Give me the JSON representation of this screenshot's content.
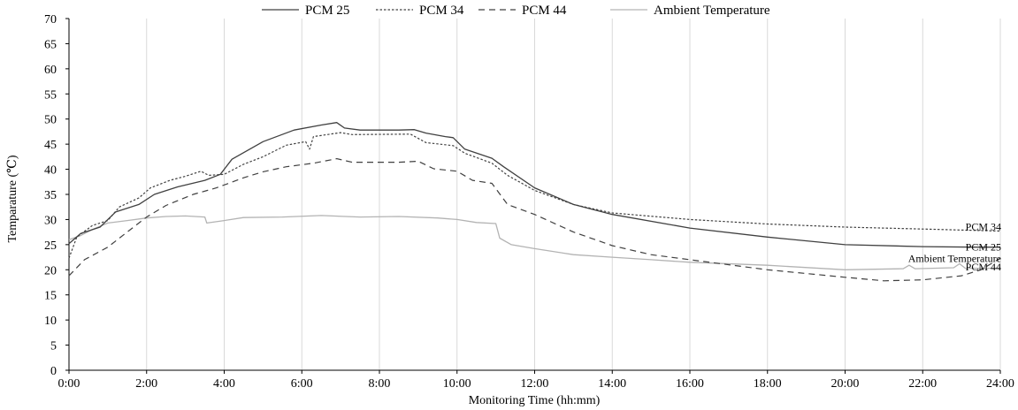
{
  "chart_data": {
    "type": "line",
    "title": "",
    "xlabel": "Monitoring Time (hh:mm)",
    "ylabel": "Temparature (℃)",
    "xlim": [
      0,
      24
    ],
    "ylim": [
      0,
      70
    ],
    "x_ticks": [
      0,
      2,
      4,
      6,
      8,
      10,
      12,
      14,
      16,
      18,
      20,
      22,
      24
    ],
    "x_tick_labels": [
      "0:00",
      "2:00",
      "4:00",
      "6:00",
      "8:00",
      "10:00",
      "12:00",
      "14:00",
      "16:00",
      "18:00",
      "20:00",
      "22:00",
      "24:00"
    ],
    "y_ticks": [
      0,
      5,
      10,
      15,
      20,
      25,
      30,
      35,
      40,
      45,
      50,
      55,
      60,
      65,
      70
    ],
    "y_tick_labels": [
      "0",
      "5",
      "10",
      "15",
      "20",
      "25",
      "30",
      "35",
      "40",
      "45",
      "50",
      "55",
      "60",
      "65",
      "70"
    ],
    "grid": "vertical",
    "legend_position": "top",
    "series": [
      {
        "name": "PCM 25",
        "end_label": "PCM 25",
        "color": "#404040",
        "dash": "solid",
        "points": [
          [
            0,
            25.2
          ],
          [
            0.3,
            27.2
          ],
          [
            0.8,
            28.5
          ],
          [
            1.2,
            31.5
          ],
          [
            1.8,
            33.0
          ],
          [
            2.2,
            35.0
          ],
          [
            2.8,
            36.5
          ],
          [
            3.5,
            37.8
          ],
          [
            3.9,
            39.0
          ],
          [
            4.2,
            42.0
          ],
          [
            5.0,
            45.5
          ],
          [
            5.8,
            47.8
          ],
          [
            6.5,
            48.8
          ],
          [
            6.9,
            49.3
          ],
          [
            7.1,
            48.2
          ],
          [
            7.5,
            47.8
          ],
          [
            8.5,
            47.8
          ],
          [
            8.9,
            47.9
          ],
          [
            9.2,
            47.2
          ],
          [
            9.7,
            46.5
          ],
          [
            9.9,
            46.3
          ],
          [
            10.2,
            44.0
          ],
          [
            10.9,
            42.2
          ],
          [
            11.2,
            40.5
          ],
          [
            12.0,
            36.3
          ],
          [
            13.0,
            33.0
          ],
          [
            14.0,
            31.0
          ],
          [
            16.0,
            28.3
          ],
          [
            18.0,
            26.5
          ],
          [
            20.0,
            25.0
          ],
          [
            22.0,
            24.6
          ],
          [
            23.3,
            24.5
          ],
          [
            24.0,
            24.5
          ]
        ]
      },
      {
        "name": "PCM 34",
        "end_label": "PCM 34",
        "color": "#404040",
        "dash": "dotted",
        "points": [
          [
            0,
            22.3
          ],
          [
            0.2,
            26.5
          ],
          [
            0.6,
            28.8
          ],
          [
            1.0,
            29.8
          ],
          [
            1.3,
            32.5
          ],
          [
            1.8,
            34.3
          ],
          [
            2.1,
            36.3
          ],
          [
            2.6,
            37.8
          ],
          [
            3.0,
            38.6
          ],
          [
            3.4,
            39.6
          ],
          [
            3.6,
            38.8
          ],
          [
            4.0,
            39.0
          ],
          [
            4.5,
            41.0
          ],
          [
            5.0,
            42.5
          ],
          [
            5.6,
            44.8
          ],
          [
            6.1,
            45.5
          ],
          [
            6.2,
            44.0
          ],
          [
            6.3,
            46.5
          ],
          [
            7.0,
            47.3
          ],
          [
            7.3,
            46.9
          ],
          [
            8.8,
            47.0
          ],
          [
            9.2,
            45.3
          ],
          [
            9.9,
            44.7
          ],
          [
            10.2,
            43.2
          ],
          [
            10.9,
            41.2
          ],
          [
            11.3,
            38.8
          ],
          [
            12.0,
            35.8
          ],
          [
            13.0,
            33.0
          ],
          [
            14.0,
            31.3
          ],
          [
            16.0,
            30.0
          ],
          [
            18.0,
            29.1
          ],
          [
            20.0,
            28.5
          ],
          [
            22.0,
            28.1
          ],
          [
            24.0,
            27.7
          ]
        ]
      },
      {
        "name": "PCM 44",
        "end_label": "PCM 44",
        "color": "#404040",
        "dash": "dashed",
        "points": [
          [
            0,
            18.8
          ],
          [
            0.4,
            22.0
          ],
          [
            1.0,
            24.5
          ],
          [
            1.5,
            27.5
          ],
          [
            2.0,
            30.5
          ],
          [
            2.5,
            32.8
          ],
          [
            3.2,
            35.0
          ],
          [
            3.8,
            36.3
          ],
          [
            4.5,
            38.3
          ],
          [
            5.0,
            39.5
          ],
          [
            5.6,
            40.5
          ],
          [
            6.3,
            41.2
          ],
          [
            6.9,
            42.1
          ],
          [
            7.3,
            41.4
          ],
          [
            8.5,
            41.4
          ],
          [
            9.0,
            41.6
          ],
          [
            9.4,
            40.1
          ],
          [
            10.0,
            39.6
          ],
          [
            10.4,
            37.8
          ],
          [
            10.9,
            37.2
          ],
          [
            11.3,
            33.0
          ],
          [
            12.0,
            31.0
          ],
          [
            13.0,
            27.5
          ],
          [
            14.0,
            24.8
          ],
          [
            15.0,
            23.0
          ],
          [
            16.0,
            22.0
          ],
          [
            18.0,
            20.0
          ],
          [
            20.0,
            18.5
          ],
          [
            21.0,
            17.8
          ],
          [
            22.0,
            18.0
          ],
          [
            23.0,
            18.8
          ],
          [
            23.5,
            20.0
          ],
          [
            24.0,
            22.3
          ]
        ]
      },
      {
        "name": "Ambient Temperature",
        "end_label": "Ambient Temperature",
        "color": "#b3b3b3",
        "dash": "solid",
        "points": [
          [
            0,
            26.0
          ],
          [
            0.3,
            26.8
          ],
          [
            0.6,
            28.0
          ],
          [
            1.0,
            29.3
          ],
          [
            1.5,
            29.8
          ],
          [
            2.0,
            30.3
          ],
          [
            2.5,
            30.6
          ],
          [
            3.0,
            30.7
          ],
          [
            3.5,
            30.5
          ],
          [
            3.55,
            29.3
          ],
          [
            4.0,
            29.8
          ],
          [
            4.5,
            30.4
          ],
          [
            5.5,
            30.5
          ],
          [
            6.5,
            30.8
          ],
          [
            7.5,
            30.5
          ],
          [
            8.5,
            30.6
          ],
          [
            9.5,
            30.3
          ],
          [
            10.0,
            30.0
          ],
          [
            10.5,
            29.4
          ],
          [
            11.0,
            29.2
          ],
          [
            11.1,
            26.3
          ],
          [
            11.4,
            25.0
          ],
          [
            12.0,
            24.2
          ],
          [
            13.0,
            23.0
          ],
          [
            14.0,
            22.5
          ],
          [
            15.0,
            22.0
          ],
          [
            16.0,
            21.5
          ],
          [
            18.0,
            20.9
          ],
          [
            20.0,
            20.0
          ],
          [
            21.5,
            20.2
          ],
          [
            21.65,
            20.9
          ],
          [
            21.8,
            20.2
          ],
          [
            22.8,
            20.4
          ],
          [
            22.95,
            21.2
          ],
          [
            23.1,
            20.3
          ],
          [
            24.0,
            20.3
          ]
        ]
      }
    ]
  }
}
